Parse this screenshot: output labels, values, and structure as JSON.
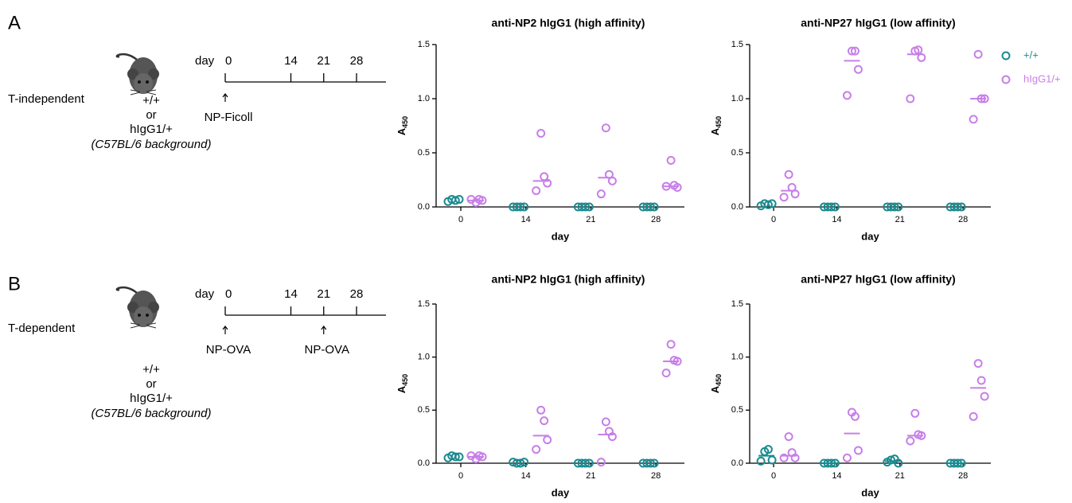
{
  "panels": [
    {
      "label": "A",
      "condition": "T-independent",
      "genotypes": [
        "+/+",
        "or",
        "hIgG1/+",
        "(C57BL/6 background)"
      ],
      "timeline_prefix": "day",
      "days": [
        0,
        14,
        21,
        28
      ],
      "injections": [
        "NP-Ficoll",
        null,
        null,
        null
      ]
    },
    {
      "label": "B",
      "condition": "T-dependent",
      "genotypes": [
        "+/+",
        "or",
        "hIgG1/+",
        "(C57BL/6 background)"
      ],
      "timeline_prefix": "day",
      "days": [
        0,
        14,
        21,
        28
      ],
      "injections": [
        "NP-OVA",
        null,
        "NP-OVA",
        null
      ]
    }
  ],
  "legend": [
    {
      "name": "+/+",
      "color": "#1b8a8f"
    },
    {
      "name": "hIgG1/+",
      "color": "#c77fe8"
    }
  ],
  "chart_data": [
    {
      "type": "scatter",
      "title": "anti-NP2 hIgG1 (high affinity)",
      "x_label": "day",
      "y_label": "A",
      "y_label_subscript": "450",
      "categories": [
        "0",
        "14",
        "21",
        "28"
      ],
      "ylim": [
        0,
        1.5
      ],
      "yticks": [
        {
          "value": 0,
          "label": "0.0"
        },
        {
          "value": 0.5,
          "label": "0.5"
        },
        {
          "value": 1,
          "label": "1.0"
        },
        {
          "value": 1.5,
          "label": "1.5"
        }
      ],
      "series": [
        {
          "values": [
            [
              0.05,
              0.07,
              0.06,
              0.07
            ],
            [
              0,
              0,
              0,
              0
            ],
            [
              0,
              0,
              0,
              0
            ],
            [
              0,
              0,
              0,
              0
            ]
          ]
        },
        {
          "values": [
            [
              0.04,
              0.07,
              0.06,
              0.07
            ],
            [
              0.68,
              0.28,
              0.22,
              0.15
            ],
            [
              0.73,
              0.3,
              0.24,
              0.12
            ],
            [
              0.43,
              0.2,
              0.18,
              0.19
            ]
          ],
          "medians": [
            0.06,
            0.24,
            0.27,
            0.19
          ]
        }
      ]
    },
    {
      "type": "scatter",
      "title": "anti-NP27 hIgG1 (low affinity)",
      "x_label": "day",
      "y_label": "A",
      "y_label_subscript": "450",
      "categories": [
        "0",
        "14",
        "21",
        "28"
      ],
      "ylim": [
        0,
        1.5
      ],
      "yticks": [
        {
          "value": 0,
          "label": "0.0"
        },
        {
          "value": 0.5,
          "label": "0.5"
        },
        {
          "value": 1,
          "label": "1.0"
        },
        {
          "value": 1.5,
          "label": "1.5"
        }
      ],
      "series": [
        {
          "values": [
            [
              0.01,
              0.03,
              0.02,
              0.03
            ],
            [
              0,
              0,
              0,
              0
            ],
            [
              0,
              0,
              0,
              0
            ],
            [
              0,
              0,
              0,
              0
            ]
          ]
        },
        {
          "values": [
            [
              0.3,
              0.18,
              0.12,
              0.09
            ],
            [
              1.44,
              1.44,
              1.27,
              1.03
            ],
            [
              1.44,
              1.45,
              1.38,
              1.0
            ],
            [
              1.41,
              1.0,
              1.0,
              0.81
            ]
          ],
          "medians": [
            0.15,
            1.35,
            1.41,
            1.0
          ]
        }
      ]
    },
    {
      "type": "scatter",
      "title": "anti-NP2 hIgG1 (high affinity)",
      "x_label": "day",
      "y_label": "A",
      "y_label_subscript": "450",
      "categories": [
        "0",
        "14",
        "21",
        "28"
      ],
      "ylim": [
        0,
        1.5
      ],
      "yticks": [
        {
          "value": 0,
          "label": "0.0"
        },
        {
          "value": 0.5,
          "label": "0.5"
        },
        {
          "value": 1,
          "label": "1.0"
        },
        {
          "value": 1.5,
          "label": "1.5"
        }
      ],
      "series": [
        {
          "values": [
            [
              0.05,
              0.07,
              0.06,
              0.06
            ],
            [
              0.01,
              0,
              0,
              0.01
            ],
            [
              0,
              0,
              0,
              0
            ],
            [
              0,
              0,
              0,
              0
            ]
          ]
        },
        {
          "values": [
            [
              0.04,
              0.07,
              0.06,
              0.07
            ],
            [
              0.5,
              0.4,
              0.22,
              0.13
            ],
            [
              0.39,
              0.3,
              0.25,
              0.01
            ],
            [
              1.12,
              0.97,
              0.96,
              0.85
            ]
          ],
          "medians": [
            0.06,
            0.26,
            0.27,
            0.96
          ]
        }
      ]
    },
    {
      "type": "scatter",
      "title": "anti-NP27 hIgG1 (low affinity)",
      "x_label": "day",
      "y_label": "A",
      "y_label_subscript": "450",
      "categories": [
        "0",
        "14",
        "21",
        "28"
      ],
      "ylim": [
        0,
        1.5
      ],
      "yticks": [
        {
          "value": 0,
          "label": "0.0"
        },
        {
          "value": 0.5,
          "label": "0.5"
        },
        {
          "value": 1,
          "label": "1.0"
        },
        {
          "value": 1.5,
          "label": "1.5"
        }
      ],
      "series": [
        {
          "values": [
            [
              0.02,
              0.11,
              0.13,
              0.03
            ],
            [
              0,
              0,
              0,
              0
            ],
            [
              0.01,
              0.03,
              0.04,
              0
            ],
            [
              0,
              0,
              0,
              0
            ]
          ],
          "medians": [
            0.07,
            0,
            0.02,
            0
          ]
        },
        {
          "values": [
            [
              0.25,
              0.1,
              0.05,
              0.05
            ],
            [
              0.48,
              0.44,
              0.12,
              0.05
            ],
            [
              0.47,
              0.27,
              0.26,
              0.21
            ],
            [
              0.94,
              0.78,
              0.63,
              0.44
            ]
          ],
          "medians": [
            0.07,
            0.28,
            0.26,
            0.71
          ]
        }
      ]
    }
  ]
}
